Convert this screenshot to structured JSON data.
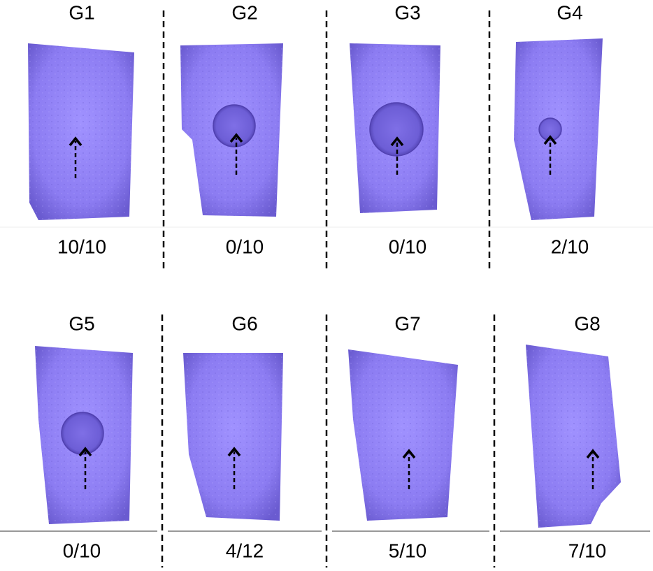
{
  "panels": [
    {
      "label": "G1",
      "score": "10/10"
    },
    {
      "label": "G2",
      "score": "0/10"
    },
    {
      "label": "G3",
      "score": "0/10"
    },
    {
      "label": "G4",
      "score": "2/10"
    },
    {
      "label": "G5",
      "score": "0/10"
    },
    {
      "label": "G6",
      "score": "4/12"
    },
    {
      "label": "G7",
      "score": "5/10"
    },
    {
      "label": "G8",
      "score": "7/10"
    }
  ]
}
